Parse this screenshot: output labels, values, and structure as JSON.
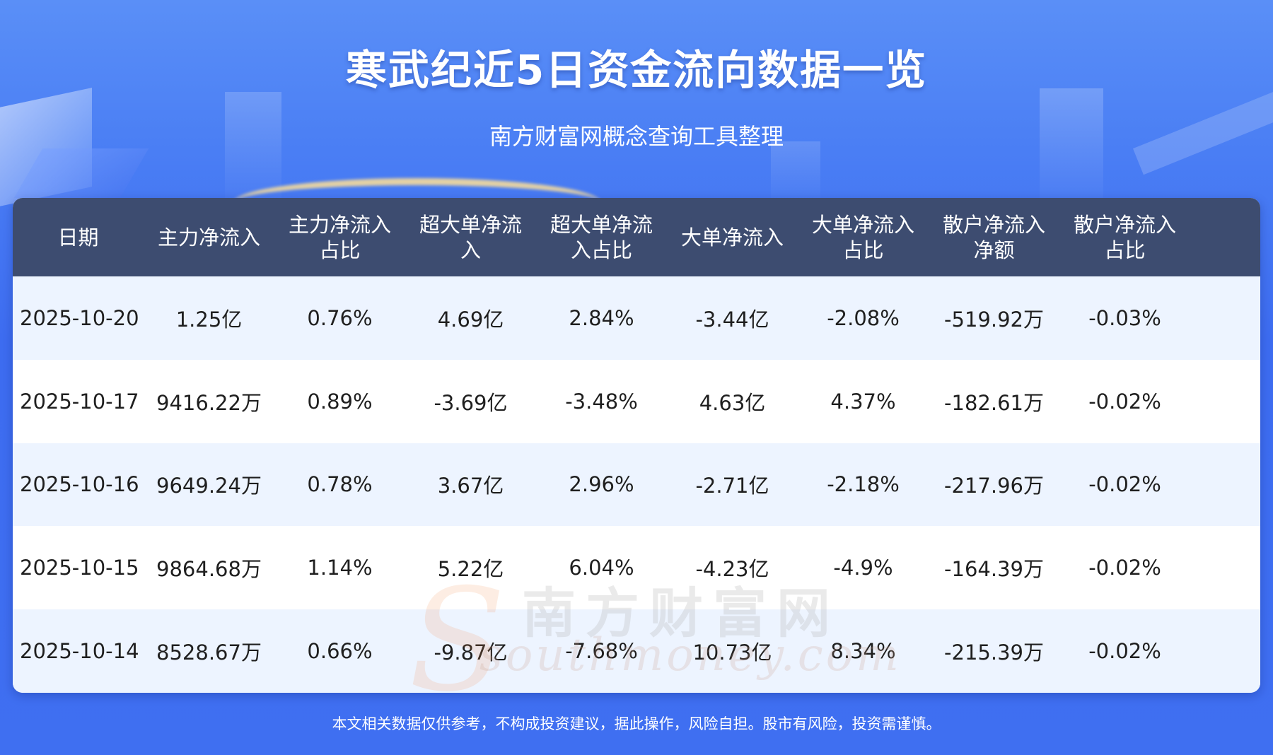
{
  "title": "寒武纪近5日资金流向数据一览",
  "subtitle": "南方财富网概念查询工具整理",
  "table": {
    "headers": [
      "日期",
      "主力净流入",
      "主力净流入占比",
      "超大单净流入",
      "超大单净流入占比",
      "大单净流入",
      "大单净流入占比",
      "散户净流入净额",
      "散户净流入占比"
    ],
    "rows": [
      [
        "2025-10-20",
        "1.25亿",
        "0.76%",
        "4.69亿",
        "2.84%",
        "-3.44亿",
        "-2.08%",
        "-519.92万",
        "-0.03%"
      ],
      [
        "2025-10-17",
        "9416.22万",
        "0.89%",
        "-3.69亿",
        "-3.48%",
        "4.63亿",
        "4.37%",
        "-182.61万",
        "-0.02%"
      ],
      [
        "2025-10-16",
        "9649.24万",
        "0.78%",
        "3.67亿",
        "2.96%",
        "-2.71亿",
        "-2.18%",
        "-217.96万",
        "-0.02%"
      ],
      [
        "2025-10-15",
        "9864.68万",
        "1.14%",
        "5.22亿",
        "6.04%",
        "-4.23亿",
        "-4.9%",
        "-164.39万",
        "-0.02%"
      ],
      [
        "2025-10-14",
        "8528.67万",
        "0.66%",
        "-9.87亿",
        "-7.68%",
        "10.73亿",
        "8.34%",
        "-215.39万",
        "-0.02%"
      ]
    ]
  },
  "watermark": {
    "cn": "南方财富网",
    "en": "southmoney.com",
    "mark": "S"
  },
  "disclaimer": "本文相关数据仅供参考，不构成投资建议，据此操作，风险自担。股市有风险，投资需谨慎。",
  "colors": {
    "header_bg": "#3d4c70",
    "row_alt_bg": "#edf4ff",
    "page_bg": "#3f6ff0"
  }
}
